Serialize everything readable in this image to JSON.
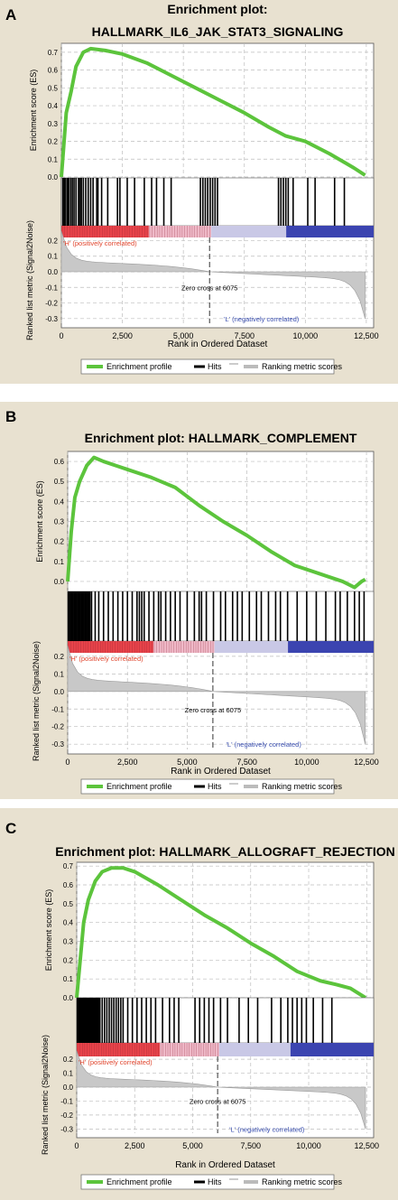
{
  "colors": {
    "panel_bg": "#e8e1d0",
    "es_line": "#5cc43c",
    "hits": "#000000",
    "metric_fill": "#c8c8c8",
    "pos_label": "#e0442c",
    "neg_label": "#3a4fb0",
    "bar_red": "#e8434a",
    "bar_pink": "#efb9c8",
    "bar_lav": "#c9c8e6",
    "bar_blue": "#3b44b0"
  },
  "legend": {
    "enrichment": "Enrichment profile",
    "hits": "Hits",
    "ranking": "Ranking metric scores"
  },
  "chart_data": [
    {
      "panel": "A",
      "type": "line",
      "title": "Enrichment plot:",
      "title2": "HALLMARK_IL6_JAK_STAT3_SIGNALING",
      "ylabel": "Enrichment score (ES)",
      "ylabel2": "Ranked list metric (Signal2Noise)",
      "xlabel": "Rank in Ordered Dataset",
      "ylim": [
        0,
        0.75
      ],
      "yticks": [
        "0.0",
        "0.1",
        "0.2",
        "0.3",
        "0.4",
        "0.5",
        "0.6",
        "0.7"
      ],
      "ylim2": [
        -0.33,
        0.22
      ],
      "yticks2": [
        "0.2",
        "0.1",
        "0.0",
        "-0.1",
        "-0.2",
        "-0.3"
      ],
      "xlim": [
        0,
        12800
      ],
      "xticks": [
        "0",
        "2,500",
        "5,000",
        "7,500",
        "10,000",
        "12,500"
      ],
      "es_points": [
        [
          0,
          0
        ],
        [
          100,
          0.18
        ],
        [
          200,
          0.36
        ],
        [
          400,
          0.48
        ],
        [
          600,
          0.62
        ],
        [
          900,
          0.7
        ],
        [
          1200,
          0.72
        ],
        [
          1800,
          0.71
        ],
        [
          2500,
          0.69
        ],
        [
          3500,
          0.64
        ],
        [
          4500,
          0.57
        ],
        [
          5500,
          0.5
        ],
        [
          6500,
          0.43
        ],
        [
          7500,
          0.36
        ],
        [
          8500,
          0.28
        ],
        [
          9200,
          0.23
        ],
        [
          10000,
          0.2
        ],
        [
          11000,
          0.13
        ],
        [
          12000,
          0.05
        ],
        [
          12450,
          0.01
        ]
      ],
      "hits": [
        60,
        120,
        180,
        250,
        300,
        380,
        450,
        520,
        600,
        700,
        760,
        820,
        900,
        1000,
        1100,
        1200,
        1300,
        1450,
        1500,
        1650,
        1900,
        2300,
        2400,
        2700,
        3000,
        3400,
        3700,
        3900,
        4200,
        4500,
        5700,
        5800,
        5900,
        6000,
        6100,
        6200,
        6300,
        6400,
        8900,
        9000,
        9100,
        9200,
        9300,
        9500,
        10100,
        10400,
        11200,
        11600
      ],
      "zero_cross": 6075,
      "zero_cross_label": "Zero cross at 6075",
      "pos_label": "'H' (positively correlated)",
      "neg_label": "'L' (negatively correlated)"
    },
    {
      "panel": "B",
      "type": "line",
      "title": "Enrichment plot: HALLMARK_COMPLEMENT",
      "title2": "",
      "ylabel": "Enrichment score (ES)",
      "ylabel2": "Ranked list metric (Signal2Noise)",
      "xlabel": "Rank in Ordered Dataset",
      "ylim": [
        -0.05,
        0.65
      ],
      "yticks": [
        "0.0",
        "0.1",
        "0.2",
        "0.3",
        "0.4",
        "0.5",
        "0.6"
      ],
      "ylim2": [
        -0.33,
        0.22
      ],
      "yticks2": [
        "0.2",
        "0.1",
        "0.0",
        "-0.1",
        "-0.2",
        "-0.3"
      ],
      "xlim": [
        0,
        12800
      ],
      "xticks": [
        "0",
        "2,500",
        "5,000",
        "7,500",
        "10,000",
        "12,500"
      ],
      "es_points": [
        [
          0,
          0
        ],
        [
          150,
          0.25
        ],
        [
          300,
          0.42
        ],
        [
          500,
          0.5
        ],
        [
          800,
          0.58
        ],
        [
          1100,
          0.62
        ],
        [
          1500,
          0.6
        ],
        [
          2500,
          0.56
        ],
        [
          3500,
          0.52
        ],
        [
          4500,
          0.47
        ],
        [
          5500,
          0.38
        ],
        [
          6500,
          0.3
        ],
        [
          7500,
          0.23
        ],
        [
          8500,
          0.15
        ],
        [
          9500,
          0.08
        ],
        [
          10500,
          0.04
        ],
        [
          11500,
          0.0
        ],
        [
          12000,
          -0.03
        ],
        [
          12300,
          0.0
        ],
        [
          12450,
          0.01
        ]
      ],
      "hits": [
        30,
        80,
        130,
        180,
        230,
        280,
        330,
        380,
        430,
        480,
        530,
        580,
        630,
        680,
        730,
        780,
        830,
        880,
        930,
        1000,
        1150,
        1300,
        1500,
        1700,
        1900,
        2100,
        2300,
        2500,
        2700,
        2900,
        3000,
        3100,
        3200,
        3400,
        3600,
        3800,
        3900,
        4100,
        4300,
        4500,
        4700,
        5000,
        5300,
        5500,
        5600,
        5800,
        6100,
        6400,
        6600,
        6900,
        7100,
        7300,
        7600,
        7900,
        8100,
        8400,
        8700,
        8900,
        9200,
        9600,
        10000,
        10400,
        10800,
        11200,
        11400,
        11700,
        12000,
        12200,
        12400
      ],
      "zero_cross": 6075,
      "zero_cross_label": "Zero cross at 6075",
      "pos_label": "'H' (positively correlated)",
      "neg_label": "'L' (negatively correlated)"
    },
    {
      "panel": "C",
      "type": "line",
      "title": "Enrichment plot: HALLMARK_ALLOGRAFT_REJECTION",
      "title2": "",
      "ylabel": "Enrichment score (ES)",
      "ylabel2": "Ranked list metric (Signal2Noise)",
      "xlabel": "Rank in Ordered Dataset",
      "ylim": [
        0,
        0.72
      ],
      "yticks": [
        "0.0",
        "0.1",
        "0.2",
        "0.3",
        "0.4",
        "0.5",
        "0.6",
        "0.7"
      ],
      "ylim2": [
        -0.33,
        0.22
      ],
      "yticks2": [
        "0.2",
        "0.1",
        "0.0",
        "-0.1",
        "-0.2",
        "-0.3"
      ],
      "xlim": [
        0,
        12800
      ],
      "xticks": [
        "0",
        "2,500",
        "5,000",
        "7,500",
        "10,000",
        "12,500"
      ],
      "es_points": [
        [
          0,
          0
        ],
        [
          150,
          0.2
        ],
        [
          300,
          0.4
        ],
        [
          500,
          0.52
        ],
        [
          800,
          0.62
        ],
        [
          1100,
          0.67
        ],
        [
          1500,
          0.69
        ],
        [
          2000,
          0.69
        ],
        [
          2500,
          0.67
        ],
        [
          3500,
          0.6
        ],
        [
          4500,
          0.52
        ],
        [
          5500,
          0.44
        ],
        [
          6500,
          0.37
        ],
        [
          7500,
          0.29
        ],
        [
          8500,
          0.22
        ],
        [
          9500,
          0.14
        ],
        [
          10500,
          0.09
        ],
        [
          11200,
          0.07
        ],
        [
          11800,
          0.05
        ],
        [
          12450,
          0.0
        ]
      ],
      "hits": [
        30,
        70,
        110,
        150,
        190,
        230,
        270,
        310,
        350,
        390,
        430,
        470,
        510,
        550,
        590,
        630,
        670,
        710,
        750,
        790,
        830,
        870,
        910,
        950,
        1000,
        1100,
        1200,
        1300,
        1400,
        1500,
        1600,
        1700,
        1800,
        1900,
        2000,
        2200,
        2400,
        2600,
        2800,
        3000,
        3200,
        3400,
        3700,
        4000,
        4200,
        4400,
        5100,
        5300,
        5500,
        5700,
        5900,
        6200,
        6500,
        7000,
        7400,
        7800,
        8400,
        8800,
        9100,
        9300,
        9500,
        9700,
        9900,
        10200,
        10600,
        11000
      ],
      "zero_cross": 6075,
      "zero_cross_label": "Zero cross at 6075",
      "pos_label": "'H' (positively correlated)",
      "neg_label": "'L' (negatively correlated)"
    }
  ]
}
